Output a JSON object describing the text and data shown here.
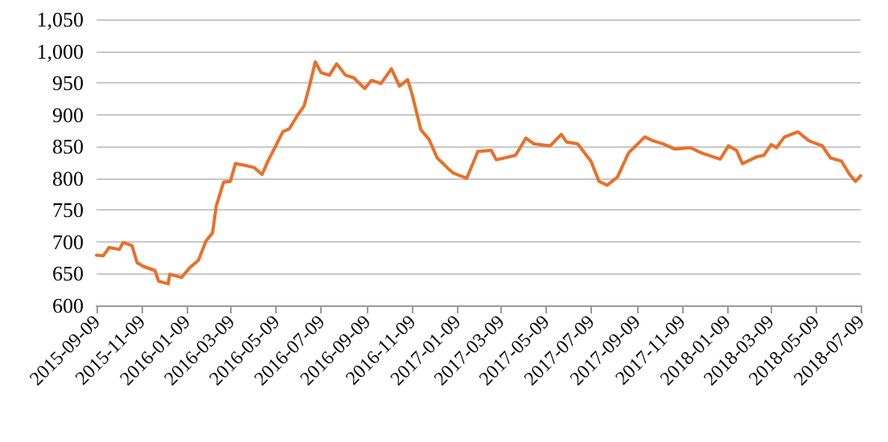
{
  "chart_data": {
    "type": "line",
    "color": "#e8702a",
    "grid": "y",
    "marker": "none",
    "line_style": "solid",
    "xlim": [
      "2015-09-09",
      "2018-07-09"
    ],
    "xticks": [
      "2015-09-09",
      "2015-11-09",
      "2016-01-09",
      "2016-03-09",
      "2016-05-09",
      "2016-07-09",
      "2016-09-09",
      "2016-11-09",
      "2017-01-09",
      "2017-03-09",
      "2017-05-09",
      "2017-07-09",
      "2017-09-09",
      "2017-11-09",
      "2018-01-09",
      "2018-03-09",
      "2018-05-09",
      "2018-07-09"
    ],
    "ylim": [
      600,
      1050
    ],
    "yticks": [
      600,
      650,
      700,
      750,
      800,
      850,
      900,
      950,
      {
        "value": 1000,
        "label": "1,000"
      },
      {
        "value": 1050,
        "label": "1,050"
      }
    ],
    "x": [
      "2015-09-09",
      "2015-09-18",
      "2015-09-26",
      "2015-10-10",
      "2015-10-15",
      "2015-10-27",
      "2015-11-03",
      "2015-11-12",
      "2015-11-27",
      "2015-12-02",
      "2015-12-15",
      "2015-12-17",
      "2016-01-02",
      "2016-01-13",
      "2016-01-25",
      "2016-02-04",
      "2016-02-13",
      "2016-02-18",
      "2016-02-28",
      "2016-03-08",
      "2016-03-15",
      "2016-03-29",
      "2016-04-09",
      "2016-04-20",
      "2016-04-28",
      "2016-05-09",
      "2016-05-18",
      "2016-05-27",
      "2016-06-07",
      "2016-06-16",
      "2016-06-24",
      "2016-07-01",
      "2016-07-09",
      "2016-07-20",
      "2016-07-30",
      "2016-08-11",
      "2016-08-22",
      "2016-09-06",
      "2016-09-15",
      "2016-09-28",
      "2016-10-12",
      "2016-10-23",
      "2016-11-03",
      "2016-11-09",
      "2016-11-21",
      "2016-12-02",
      "2016-12-13",
      "2016-12-28",
      "2017-01-04",
      "2017-01-22",
      "2017-02-06",
      "2017-02-24",
      "2017-03-03",
      "2017-03-29",
      "2017-04-12",
      "2017-04-23",
      "2017-05-15",
      "2017-05-30",
      "2017-06-06",
      "2017-06-21",
      "2017-07-09",
      "2017-07-20",
      "2017-07-31",
      "2017-08-14",
      "2017-08-29",
      "2017-09-20",
      "2017-10-01",
      "2017-10-15",
      "2017-10-30",
      "2017-11-21",
      "2017-12-05",
      "2017-12-31",
      "2018-01-11",
      "2018-01-22",
      "2018-01-30",
      "2018-02-19",
      "2018-02-28",
      "2018-03-10",
      "2018-03-17",
      "2018-03-28",
      "2018-04-15",
      "2018-04-30",
      "2018-05-18",
      "2018-05-29",
      "2018-06-13",
      "2018-06-24",
      "2018-07-02",
      "2018-07-09"
    ],
    "values": [
      679,
      678,
      691,
      688,
      699,
      694,
      667,
      661,
      655,
      638,
      634,
      649,
      644,
      659,
      671,
      701,
      714,
      756,
      794,
      795,
      823,
      820,
      817,
      806,
      827,
      852,
      873,
      878,
      899,
      914,
      949,
      983,
      966,
      962,
      980,
      962,
      958,
      941,
      954,
      949,
      972,
      945,
      955,
      932,
      876,
      861,
      832,
      815,
      808,
      800,
      842,
      844,
      829,
      836,
      863,
      854,
      851,
      869,
      857,
      854,
      827,
      795,
      789,
      802,
      840,
      865,
      859,
      854,
      846,
      848,
      840,
      830,
      851,
      844,
      823,
      834,
      836,
      853,
      848,
      865,
      873,
      859,
      851,
      832,
      827,
      806,
      795,
      804
    ]
  }
}
